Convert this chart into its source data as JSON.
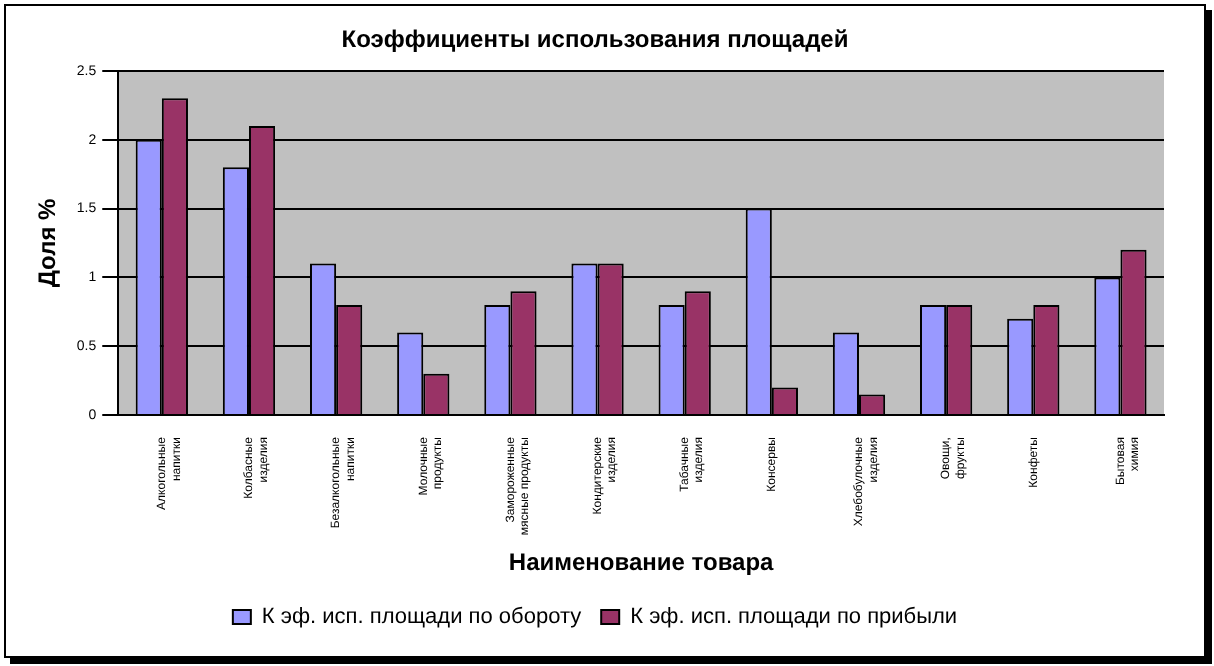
{
  "chart_data": {
    "type": "bar",
    "title": "Коэффициенты использования площадей",
    "xlabel": "Наименование товара",
    "ylabel": "Доля %",
    "categories": [
      "Алкогольные напитки",
      "Колбасные изделия",
      "Безалкогольные напитки",
      "Молочные продукты",
      "Замороженные мясные продукты",
      "Кондитерские изделия",
      "Табачные изделия",
      "Консервы",
      "Хлебобулочные изделия",
      "Овощи, фрукты",
      "Конфеты",
      "Бытовая химия"
    ],
    "series": [
      {
        "name": "К эф. исп. площади по обороту",
        "color": "#9999ff",
        "values": [
          2,
          1.8,
          1.1,
          0.6,
          0.8,
          1.1,
          0.8,
          1.5,
          0.6,
          0.8,
          0.7,
          1
        ]
      },
      {
        "name": "К эф. исп. площади по прибыли",
        "color": "#993366",
        "values": [
          2.3,
          2.1,
          0.8,
          0.3,
          0.9,
          1.1,
          0.9,
          0.2,
          0.15,
          0.8,
          0.8,
          1.2
        ]
      }
    ],
    "ylim": [
      0,
      2.5
    ],
    "yticks": [
      0,
      {
        "value": 0.5,
        "label": "0.5"
      },
      1,
      {
        "value": 1.5,
        "label": "1.5"
      },
      2,
      {
        "value": 2.5,
        "label": "2.5"
      }
    ],
    "grid": "y",
    "legend": "bottom"
  }
}
